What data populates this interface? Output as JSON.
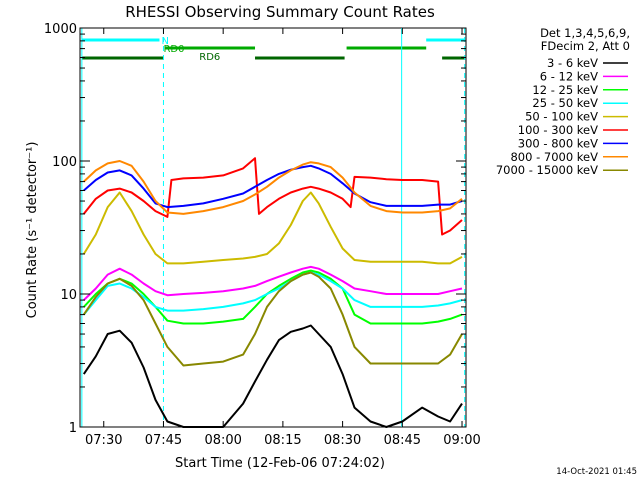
{
  "chart_data": {
    "type": "line",
    "title": "RHESSI Observing Summary Count Rates",
    "xlabel": "Start Time (12-Feb-06 07:24:02)",
    "ylabel": "Count Rate (s⁻¹ detector⁻¹)",
    "ylim": [
      1,
      1000
    ],
    "y_scale": "log",
    "xlim": [
      "07:24:02",
      "09:01:00"
    ],
    "x_ticks": [
      "07:30",
      "07:45",
      "08:00",
      "08:15",
      "08:30",
      "08:45",
      "09:00"
    ],
    "y_ticks": [
      "1",
      "10",
      "100",
      "1000"
    ],
    "legend_header": [
      "Det 1,3,4,5,6,9,",
      "FDecim 2, Att 0"
    ],
    "legend_position": "right",
    "footer_date": "14-Oct-2021 01:45",
    "flags": [
      {
        "label": "N",
        "color": "#00ffff"
      },
      {
        "label": "RD0",
        "color": "#00aa00"
      },
      {
        "label": "RD6",
        "color": "#006600"
      }
    ],
    "series": [
      {
        "name": "3 - 6 keV",
        "color": "#000000",
        "x": [
          "07:25",
          "07:28",
          "07:31",
          "07:34",
          "07:37",
          "07:40",
          "07:43",
          "07:46",
          "07:50",
          "07:55",
          "08:00",
          "08:05",
          "08:08",
          "08:11",
          "08:14",
          "08:17",
          "08:20",
          "08:22",
          "08:24",
          "08:27",
          "08:30",
          "08:33",
          "08:37",
          "08:41",
          "08:45",
          "08:50",
          "08:54",
          "08:57",
          "09:00"
        ],
        "values": [
          2.5,
          3.4,
          5,
          5.3,
          4.3,
          2.8,
          1.6,
          1.1,
          1,
          1,
          1,
          1.5,
          2.2,
          3.2,
          4.5,
          5.2,
          5.5,
          5.8,
          5,
          4,
          2.5,
          1.4,
          1.1,
          1,
          1.1,
          1.4,
          1.2,
          1.1,
          1.5
        ]
      },
      {
        "name": "6 - 12 keV",
        "color": "#ff00ff",
        "x": [
          "07:25",
          "07:28",
          "07:31",
          "07:34",
          "07:37",
          "07:40",
          "07:43",
          "07:46",
          "07:50",
          "07:55",
          "08:00",
          "08:05",
          "08:08",
          "08:11",
          "08:14",
          "08:17",
          "08:20",
          "08:22",
          "08:24",
          "08:27",
          "08:30",
          "08:33",
          "08:37",
          "08:41",
          "08:45",
          "08:50",
          "08:54",
          "08:57",
          "09:00"
        ],
        "values": [
          9,
          11,
          14,
          15.5,
          14,
          12,
          10.5,
          9.8,
          10,
          10.2,
          10.5,
          11,
          11.5,
          12.5,
          13.5,
          14.5,
          15.5,
          16,
          15.5,
          14,
          12.5,
          11,
          10.5,
          10,
          10,
          10,
          10,
          10.5,
          11
        ]
      },
      {
        "name": "12 - 25 keV",
        "color": "#00ff00",
        "x": [
          "07:25",
          "07:28",
          "07:31",
          "07:34",
          "07:37",
          "07:40",
          "07:43",
          "07:46",
          "07:50",
          "07:55",
          "08:00",
          "08:05",
          "08:08",
          "08:11",
          "08:14",
          "08:17",
          "08:20",
          "08:22",
          "08:24",
          "08:27",
          "08:30",
          "08:33",
          "08:37",
          "08:41",
          "08:45",
          "08:50",
          "08:54",
          "08:57",
          "09:00"
        ],
        "values": [
          8,
          10,
          12,
          13,
          12,
          10,
          8,
          6.3,
          6,
          6,
          6.2,
          6.5,
          8,
          10,
          11.5,
          13,
          14.5,
          15,
          14.5,
          13,
          11,
          7,
          6,
          6,
          6,
          6,
          6.2,
          6.5,
          7
        ]
      },
      {
        "name": "25 - 50 keV",
        "color": "#00ffff",
        "x": [
          "07:25",
          "07:28",
          "07:31",
          "07:34",
          "07:37",
          "07:40",
          "07:43",
          "07:46",
          "07:50",
          "07:55",
          "08:00",
          "08:05",
          "08:08",
          "08:11",
          "08:14",
          "08:17",
          "08:20",
          "08:22",
          "08:24",
          "08:27",
          "08:30",
          "08:33",
          "08:37",
          "08:41",
          "08:45",
          "08:50",
          "08:54",
          "08:57",
          "09:00"
        ],
        "values": [
          7,
          9,
          11.5,
          12,
          11,
          9.5,
          8,
          7.5,
          7.5,
          7.7,
          8,
          8.5,
          9,
          10,
          11,
          12.5,
          14,
          14.5,
          14,
          12.5,
          11,
          9,
          8,
          8,
          8,
          8,
          8.2,
          8.5,
          9
        ]
      },
      {
        "name": "50 - 100 keV",
        "color": "#ffaa00",
        "x": [],
        "values": []
      },
      {
        "name": "100 - 300 keV",
        "color": "#ff0000",
        "x": [
          "07:25",
          "07:28",
          "07:31",
          "07:34",
          "07:37",
          "07:40",
          "07:43",
          "07:46",
          "07:47",
          "07:50",
          "07:55",
          "08:00",
          "08:05",
          "08:08",
          "08:09",
          "08:11",
          "08:14",
          "08:17",
          "08:20",
          "08:22",
          "08:24",
          "08:27",
          "08:30",
          "08:32",
          "08:33",
          "08:37",
          "08:41",
          "08:45",
          "08:50",
          "08:54",
          "08:55",
          "08:57",
          "09:00"
        ],
        "values": [
          40,
          52,
          60,
          62,
          58,
          50,
          42,
          38,
          72,
          74,
          75,
          78,
          88,
          105,
          40,
          45,
          52,
          58,
          62,
          64,
          62,
          58,
          52,
          45,
          76,
          75,
          73,
          72,
          72,
          70,
          28,
          30,
          36
        ]
      },
      {
        "name": "300 - 800 keV",
        "color": "#0000ff",
        "x": [
          "07:25",
          "07:28",
          "07:31",
          "07:34",
          "07:37",
          "07:40",
          "07:43",
          "07:46",
          "07:50",
          "07:55",
          "08:00",
          "08:05",
          "08:08",
          "08:11",
          "08:14",
          "08:17",
          "08:20",
          "08:22",
          "08:24",
          "08:27",
          "08:30",
          "08:33",
          "08:37",
          "08:41",
          "08:45",
          "08:50",
          "08:54",
          "08:57",
          "09:00"
        ],
        "values": [
          60,
          72,
          82,
          85,
          78,
          62,
          48,
          45,
          46,
          48,
          52,
          57,
          64,
          72,
          80,
          86,
          90,
          92,
          88,
          80,
          68,
          57,
          49,
          46,
          46,
          46,
          47,
          47,
          50
        ]
      },
      {
        "name": "800 - 7000 keV",
        "color": "#ff8800",
        "x": [
          "07:25",
          "07:28",
          "07:31",
          "07:34",
          "07:37",
          "07:40",
          "07:43",
          "07:46",
          "07:50",
          "07:55",
          "08:00",
          "08:05",
          "08:08",
          "08:11",
          "08:14",
          "08:17",
          "08:20",
          "08:22",
          "08:24",
          "08:27",
          "08:30",
          "08:33",
          "08:37",
          "08:41",
          "08:45",
          "08:50",
          "08:54",
          "08:57",
          "09:00"
        ],
        "values": [
          70,
          85,
          96,
          100,
          92,
          70,
          50,
          41,
          40,
          42,
          45,
          50,
          56,
          64,
          75,
          85,
          94,
          98,
          96,
          90,
          75,
          58,
          46,
          42,
          41,
          41,
          42,
          44,
          52
        ]
      },
      {
        "name": "7000 - 15000 keV",
        "color": "#888800",
        "x": [
          "07:25",
          "07:28",
          "07:31",
          "07:34",
          "07:37",
          "07:40",
          "07:43",
          "07:46",
          "07:50",
          "07:55",
          "08:00",
          "08:05",
          "08:08",
          "08:11",
          "08:14",
          "08:17",
          "08:20",
          "08:22",
          "08:24",
          "08:27",
          "08:30",
          "08:33",
          "08:37",
          "08:41",
          "08:45",
          "08:50",
          "08:54",
          "08:57",
          "09:00"
        ],
        "values": [
          7,
          9.5,
          12,
          13,
          11.5,
          9,
          6,
          4,
          2.9,
          3,
          3.1,
          3.5,
          5,
          8,
          10.5,
          12.5,
          14,
          14.5,
          13.5,
          11,
          7,
          4,
          3,
          3,
          3,
          3,
          3,
          3.5,
          5
        ]
      }
    ],
    "yellow_series": {
      "name": "50 - 100 keV",
      "color": "#ccbb00",
      "x": [
        "07:25",
        "07:28",
        "07:31",
        "07:34",
        "07:37",
        "07:40",
        "07:43",
        "07:46",
        "07:50",
        "07:55",
        "08:00",
        "08:05",
        "08:08",
        "08:11",
        "08:14",
        "08:17",
        "08:20",
        "08:22",
        "08:24",
        "08:27",
        "08:30",
        "08:33",
        "08:37",
        "08:41",
        "08:45",
        "08:50",
        "08:54",
        "08:57",
        "09:00"
      ],
      "values": [
        20,
        28,
        45,
        58,
        42,
        28,
        20,
        17,
        17,
        17.5,
        18,
        18.5,
        19,
        20,
        24,
        33,
        50,
        58,
        48,
        32,
        22,
        18,
        17.5,
        17.5,
        17.5,
        17.5,
        17,
        17,
        19
      ]
    }
  }
}
